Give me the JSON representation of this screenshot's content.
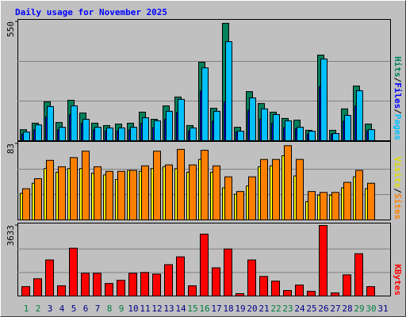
{
  "chart_data": {
    "type": "bar",
    "title": "Daily usage for November 2025",
    "legend_separator": "/",
    "categories": [
      "1",
      "2",
      "3",
      "4",
      "5",
      "6",
      "7",
      "8",
      "9",
      "10",
      "11",
      "12",
      "13",
      "14",
      "15",
      "16",
      "17",
      "18",
      "19",
      "20",
      "21",
      "22",
      "23",
      "24",
      "25",
      "26",
      "27",
      "28",
      "29",
      "30",
      "31"
    ],
    "category_colors": [
      "#008040",
      "#008040",
      "#00008b",
      "#00008b",
      "#00008b",
      "#00008b",
      "#00008b",
      "#008040",
      "#008040",
      "#00008b",
      "#00008b",
      "#00008b",
      "#00008b",
      "#00008b",
      "#008040",
      "#008040",
      "#00008b",
      "#00008b",
      "#00008b",
      "#00008b",
      "#00008b",
      "#008040",
      "#008040",
      "#00008b",
      "#00008b",
      "#00008b",
      "#00008b",
      "#00008b",
      "#008040",
      "#008040",
      "#00008b"
    ],
    "panels": [
      {
        "ylim": [
          0,
          550
        ],
        "yticks": [
          550
        ],
        "series": [
          {
            "name": "Hits",
            "color": "#00805c",
            "values": [
              51,
              81,
              180,
              84,
              187,
              128,
              81,
              70,
              77,
              81,
              132,
              99,
              161,
              202,
              70,
              363,
              150,
              543,
              62,
              227,
              172,
              132,
              103,
              95,
              48,
              396,
              48,
              147,
              253,
              77,
              0
            ]
          },
          {
            "name": "Files",
            "color": "#0000ff",
            "values": [
              30,
              50,
              110,
              50,
              120,
              80,
              50,
              45,
              45,
              50,
              80,
              60,
              100,
              130,
              45,
              230,
              90,
              180,
              40,
              140,
              100,
              80,
              60,
              55,
              30,
              250,
              30,
              90,
              160,
              45,
              0
            ]
          },
          {
            "name": "Pages",
            "color": "#00c0ff",
            "values": [
              40,
              73,
              158,
              62,
              161,
              99,
              62,
              59,
              59,
              62,
              106,
              92,
              136,
              191,
              59,
              337,
              136,
              458,
              44,
              198,
              147,
              121,
              92,
              62,
              44,
              378,
              33,
              117,
              231,
              51,
              0
            ]
          }
        ]
      },
      {
        "ylim": [
          0,
          83
        ],
        "yticks": [
          83
        ],
        "series": [
          {
            "name": "Visits",
            "color": "#ffff00",
            "values": [
              29,
              40,
              56,
              52,
              56,
              56,
              51,
              49,
              44,
              54,
              53,
              56,
              58,
              56,
              52,
              66,
              52,
              35,
              28,
              37,
              58,
              59,
              70,
              48,
              20,
              27,
              27,
              35,
              47,
              34,
              0
            ]
          },
          {
            "name": "Sites",
            "color": "#ff8000",
            "values": [
              34,
              45,
              65,
              58,
              68,
              75,
              58,
              53,
              53,
              54,
              59,
              75,
              60,
              77,
              60,
              76,
              59,
              47,
              31,
              47,
              66,
              66,
              81,
              66,
              31,
              30,
              30,
              41,
              54,
              40,
              0
            ]
          }
        ]
      },
      {
        "ylim": [
          0,
          3633
        ],
        "yticks": [
          3633
        ],
        "series": [
          {
            "name": "KBytes",
            "color": "#ff0000",
            "values": [
              484,
              888,
              1857,
              525,
              2462,
              1171,
              1171,
              646,
              807,
              1171,
              1211,
              1130,
              1615,
              2018,
              525,
              3189,
              1453,
              2422,
              121,
              1857,
              1009,
              767,
              283,
              565,
              242,
              3633,
              161,
              1090,
              2180,
              484,
              0
            ]
          }
        ]
      }
    ]
  }
}
